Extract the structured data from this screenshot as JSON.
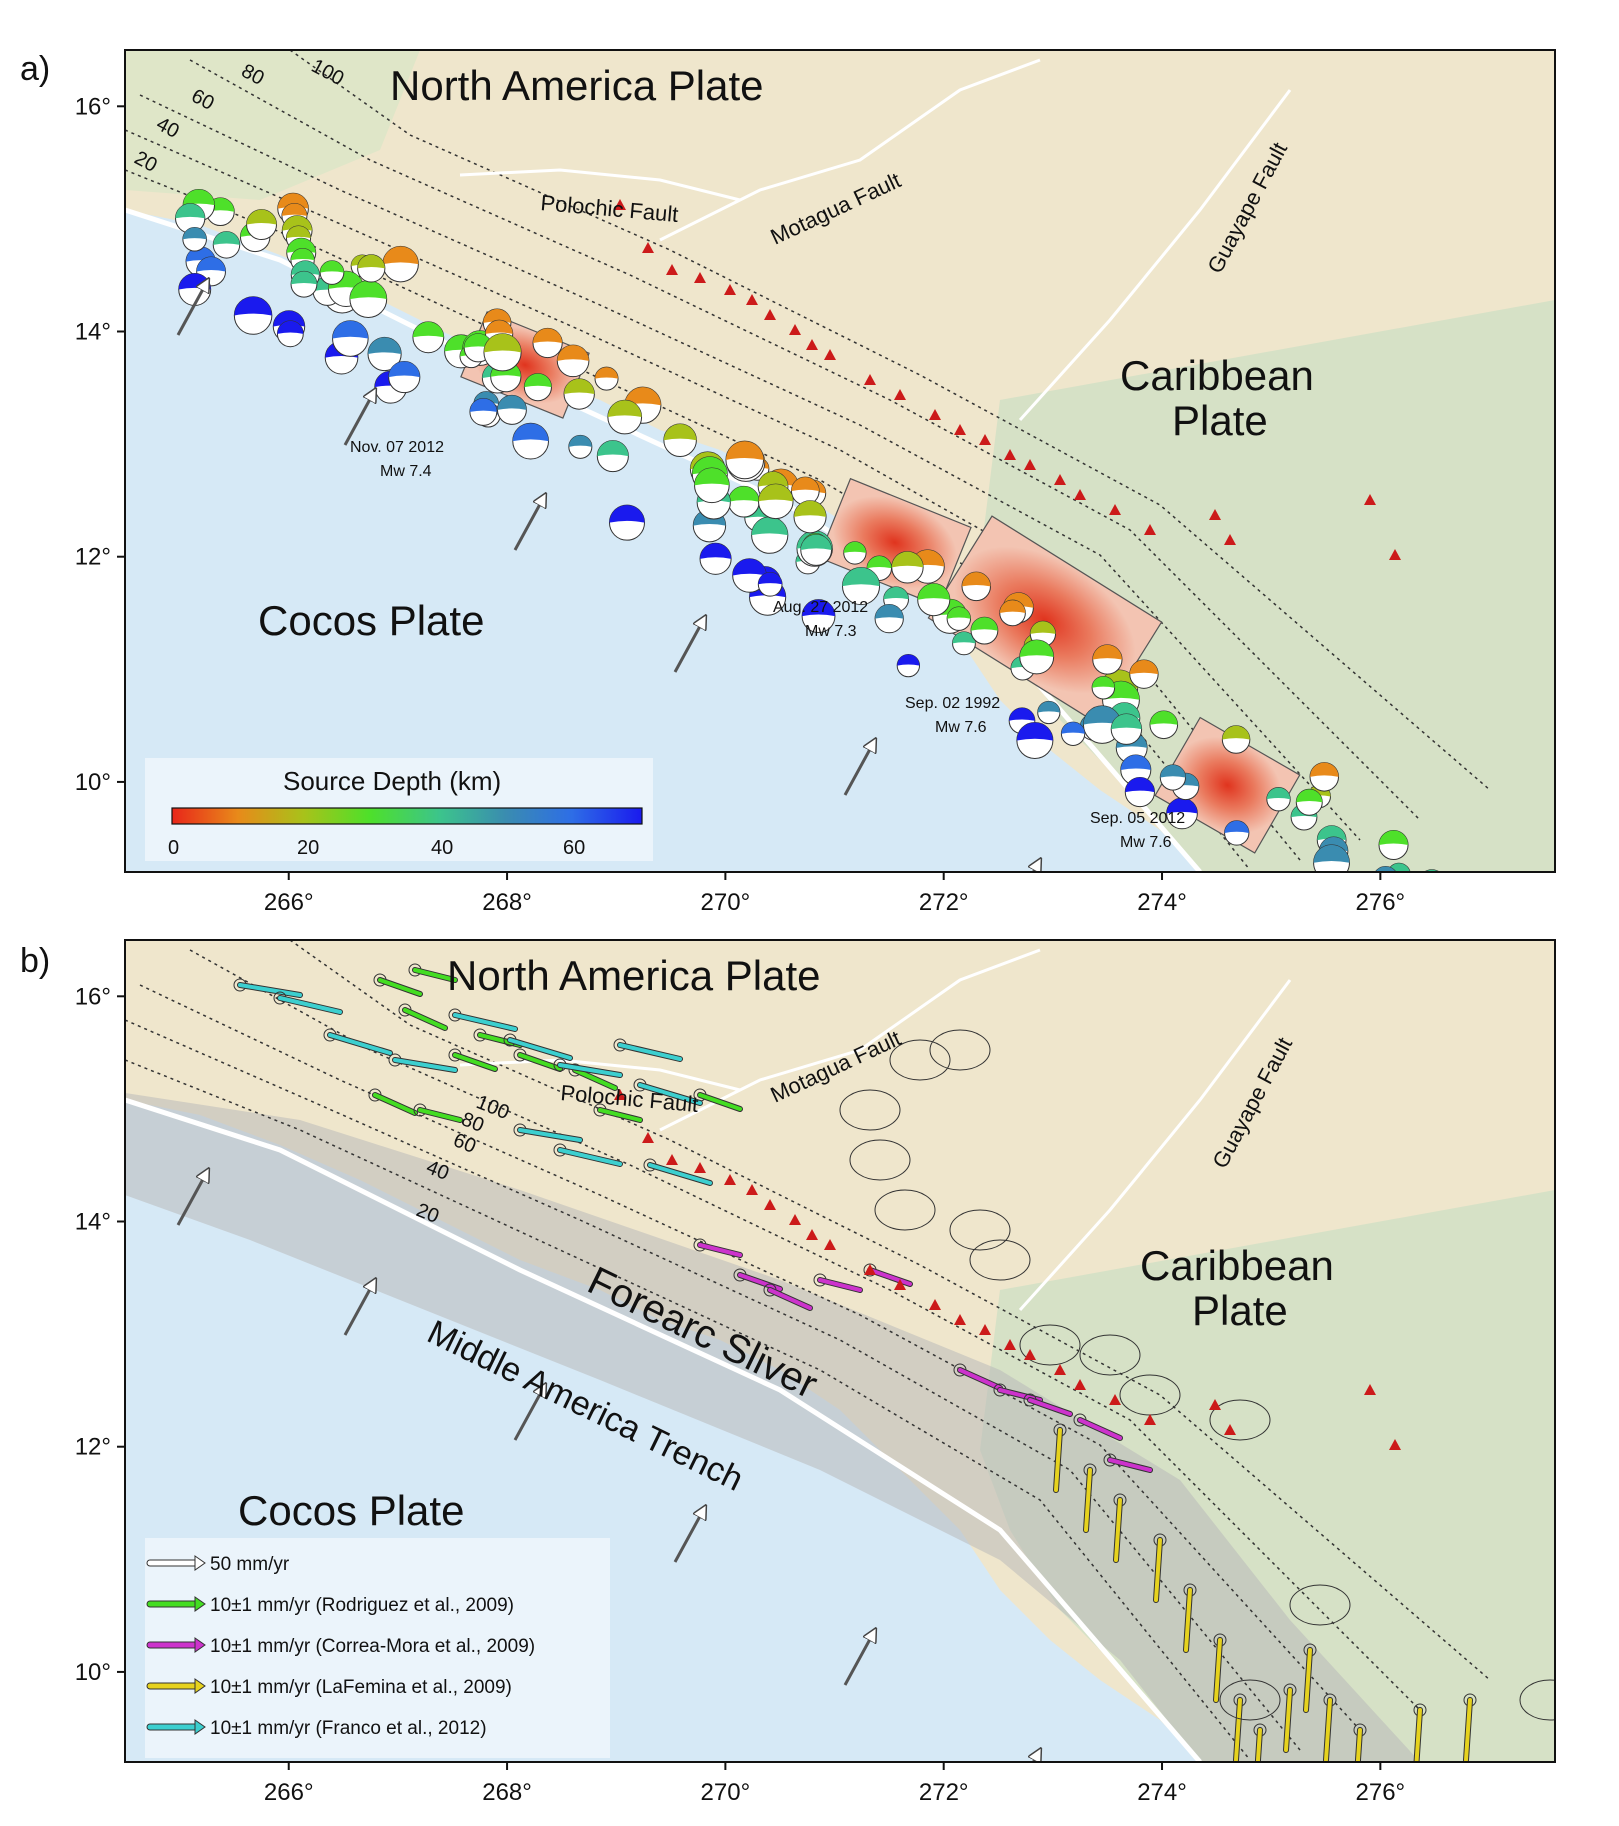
{
  "panels": [
    {
      "id": "a",
      "letter": "a)",
      "plates": [
        "North America Plate",
        "Caribbean",
        "Plate",
        "Cocos Plate"
      ],
      "faults": [
        "Polochic Fault",
        "Motagua Fault",
        "Guayape Fault"
      ],
      "contours": [
        "20",
        "40",
        "60",
        "80",
        "100"
      ],
      "earthquakes": [
        {
          "date": "Nov. 07 2012",
          "mag": "Mw 7.4"
        },
        {
          "date": "Aug. 27 2012",
          "mag": "Mw 7.3"
        },
        {
          "date": "Sep. 02 1992",
          "mag": "Mw 7.6"
        },
        {
          "date": "Sep. 05 2012",
          "mag": "Mw 7.6"
        }
      ],
      "colorbar": {
        "title": "Source Depth (km)",
        "ticks": [
          "0",
          "20",
          "40",
          "60"
        ],
        "min": 0,
        "max": 70
      }
    },
    {
      "id": "b",
      "letter": "b)",
      "plates": [
        "North America Plate",
        "Caribbean",
        "Plate",
        "Cocos Plate"
      ],
      "faults": [
        "Polochic Fault",
        "Motagua Fault",
        "Guayape Fault"
      ],
      "contours": [
        "20",
        "40",
        "60",
        "80",
        "100"
      ],
      "region_labels": [
        "Forearc Sliver",
        "Middle America Trench"
      ],
      "legend": [
        {
          "label": "50 mm/yr",
          "color": "#ffffff"
        },
        {
          "label": "10±1 mm/yr (Rodriguez et al., 2009)",
          "color": "#44dd22"
        },
        {
          "label": "10±1 mm/yr (Correa-Mora et al., 2009)",
          "color": "#cc33cc"
        },
        {
          "label": "10±1 mm/yr (LaFemina et al., 2009)",
          "color": "#e6d21e"
        },
        {
          "label": "10±1 mm/yr (Franco et al., 2012)",
          "color": "#3ccfcf"
        }
      ]
    }
  ],
  "axes": {
    "x_ticks": [
      "266°",
      "268°",
      "270°",
      "272°",
      "274°",
      "276°"
    ],
    "y_ticks": [
      "10°",
      "12°",
      "14°",
      "16°"
    ],
    "lon_range": [
      264.5,
      277.6
    ],
    "lat_range": [
      9.2,
      16.5
    ]
  },
  "colors": {
    "land": "#efe6cc",
    "land_green": "#cfe0c4",
    "ocean": "#d6e9f6",
    "volcano": "#cc1a1a",
    "forearc": "#b9b9b9"
  }
}
